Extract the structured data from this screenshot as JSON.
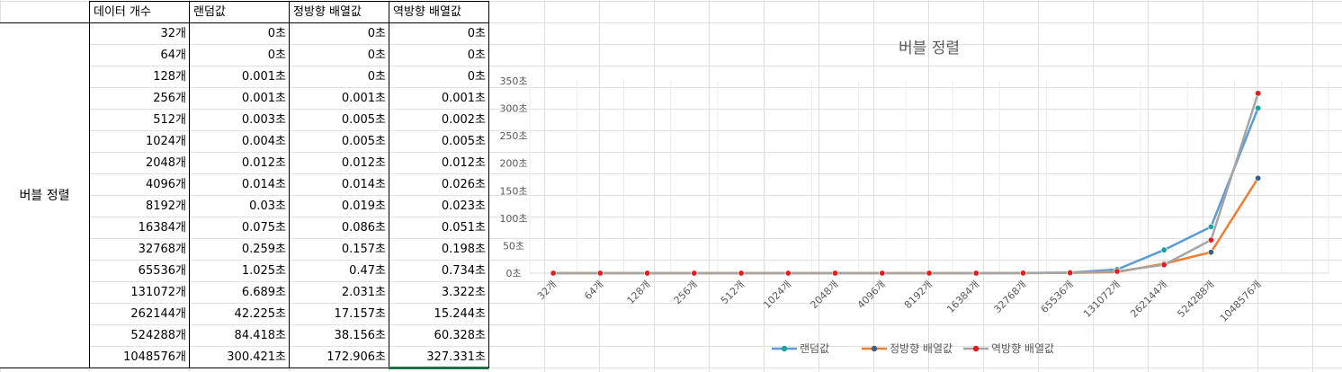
{
  "table": {
    "group_label": "버블 정렬",
    "headers": [
      "데이터 개수",
      "랜덤값",
      "정방향 배열값",
      "역방향 배열값"
    ],
    "rows": [
      [
        "32개",
        "0초",
        "0초",
        "0초"
      ],
      [
        "64개",
        "0초",
        "0초",
        "0초"
      ],
      [
        "128개",
        "0.001초",
        "0초",
        "0초"
      ],
      [
        "256개",
        "0.001초",
        "0.001초",
        "0.001초"
      ],
      [
        "512개",
        "0.003초",
        "0.005초",
        "0.002초"
      ],
      [
        "1024개",
        "0.004초",
        "0.005초",
        "0.005초"
      ],
      [
        "2048개",
        "0.012초",
        "0.012초",
        "0.012초"
      ],
      [
        "4096개",
        "0.014초",
        "0.014초",
        "0.026초"
      ],
      [
        "8192개",
        "0.03초",
        "0.019초",
        "0.023초"
      ],
      [
        "16384개",
        "0.075초",
        "0.086초",
        "0.051초"
      ],
      [
        "32768개",
        "0.259초",
        "0.157초",
        "0.198초"
      ],
      [
        "65536개",
        "1.025초",
        "0.47초",
        "0.734초"
      ],
      [
        "131072개",
        "6.689초",
        "2.031초",
        "3.322초"
      ],
      [
        "262144개",
        "42.225초",
        "17.157초",
        "15.244초"
      ],
      [
        "524288개",
        "84.418초",
        "38.156초",
        "60.328초"
      ],
      [
        "1048576개",
        "300.421초",
        "172.906초",
        "327.331초"
      ]
    ]
  },
  "chart_data": {
    "type": "line",
    "title": "버블 정렬",
    "categories": [
      "32개",
      "64개",
      "128개",
      "256개",
      "512개",
      "1024개",
      "2048개",
      "4096개",
      "8192개",
      "16384개",
      "32768개",
      "65536개",
      "131072개",
      "262144개",
      "524288개",
      "1048576개"
    ],
    "series": [
      {
        "name": "랜덤값",
        "color": "#5b9bd5",
        "marker": "#1ba39c",
        "values": [
          0,
          0,
          0.001,
          0.001,
          0.003,
          0.004,
          0.012,
          0.014,
          0.03,
          0.075,
          0.259,
          1.025,
          6.689,
          42.225,
          84.418,
          300.421
        ]
      },
      {
        "name": "정방향 배열값",
        "color": "#ed7d31",
        "marker": "#3a5f8a",
        "values": [
          0,
          0,
          0,
          0.001,
          0.005,
          0.005,
          0.012,
          0.014,
          0.019,
          0.086,
          0.157,
          0.47,
          2.031,
          17.157,
          38.156,
          172.906
        ]
      },
      {
        "name": "역방향 배열값",
        "color": "#a5a5a5",
        "marker": "#e21d1d",
        "values": [
          0,
          0,
          0,
          0.001,
          0.002,
          0.005,
          0.012,
          0.026,
          0.023,
          0.051,
          0.198,
          0.734,
          3.322,
          15.244,
          60.328,
          327.331
        ]
      }
    ],
    "ylim": [
      0,
      350
    ],
    "yticks": [
      0,
      50,
      100,
      150,
      200,
      250,
      300,
      350
    ],
    "yunit": "초",
    "grid": "vertical",
    "legend": "bottom"
  }
}
